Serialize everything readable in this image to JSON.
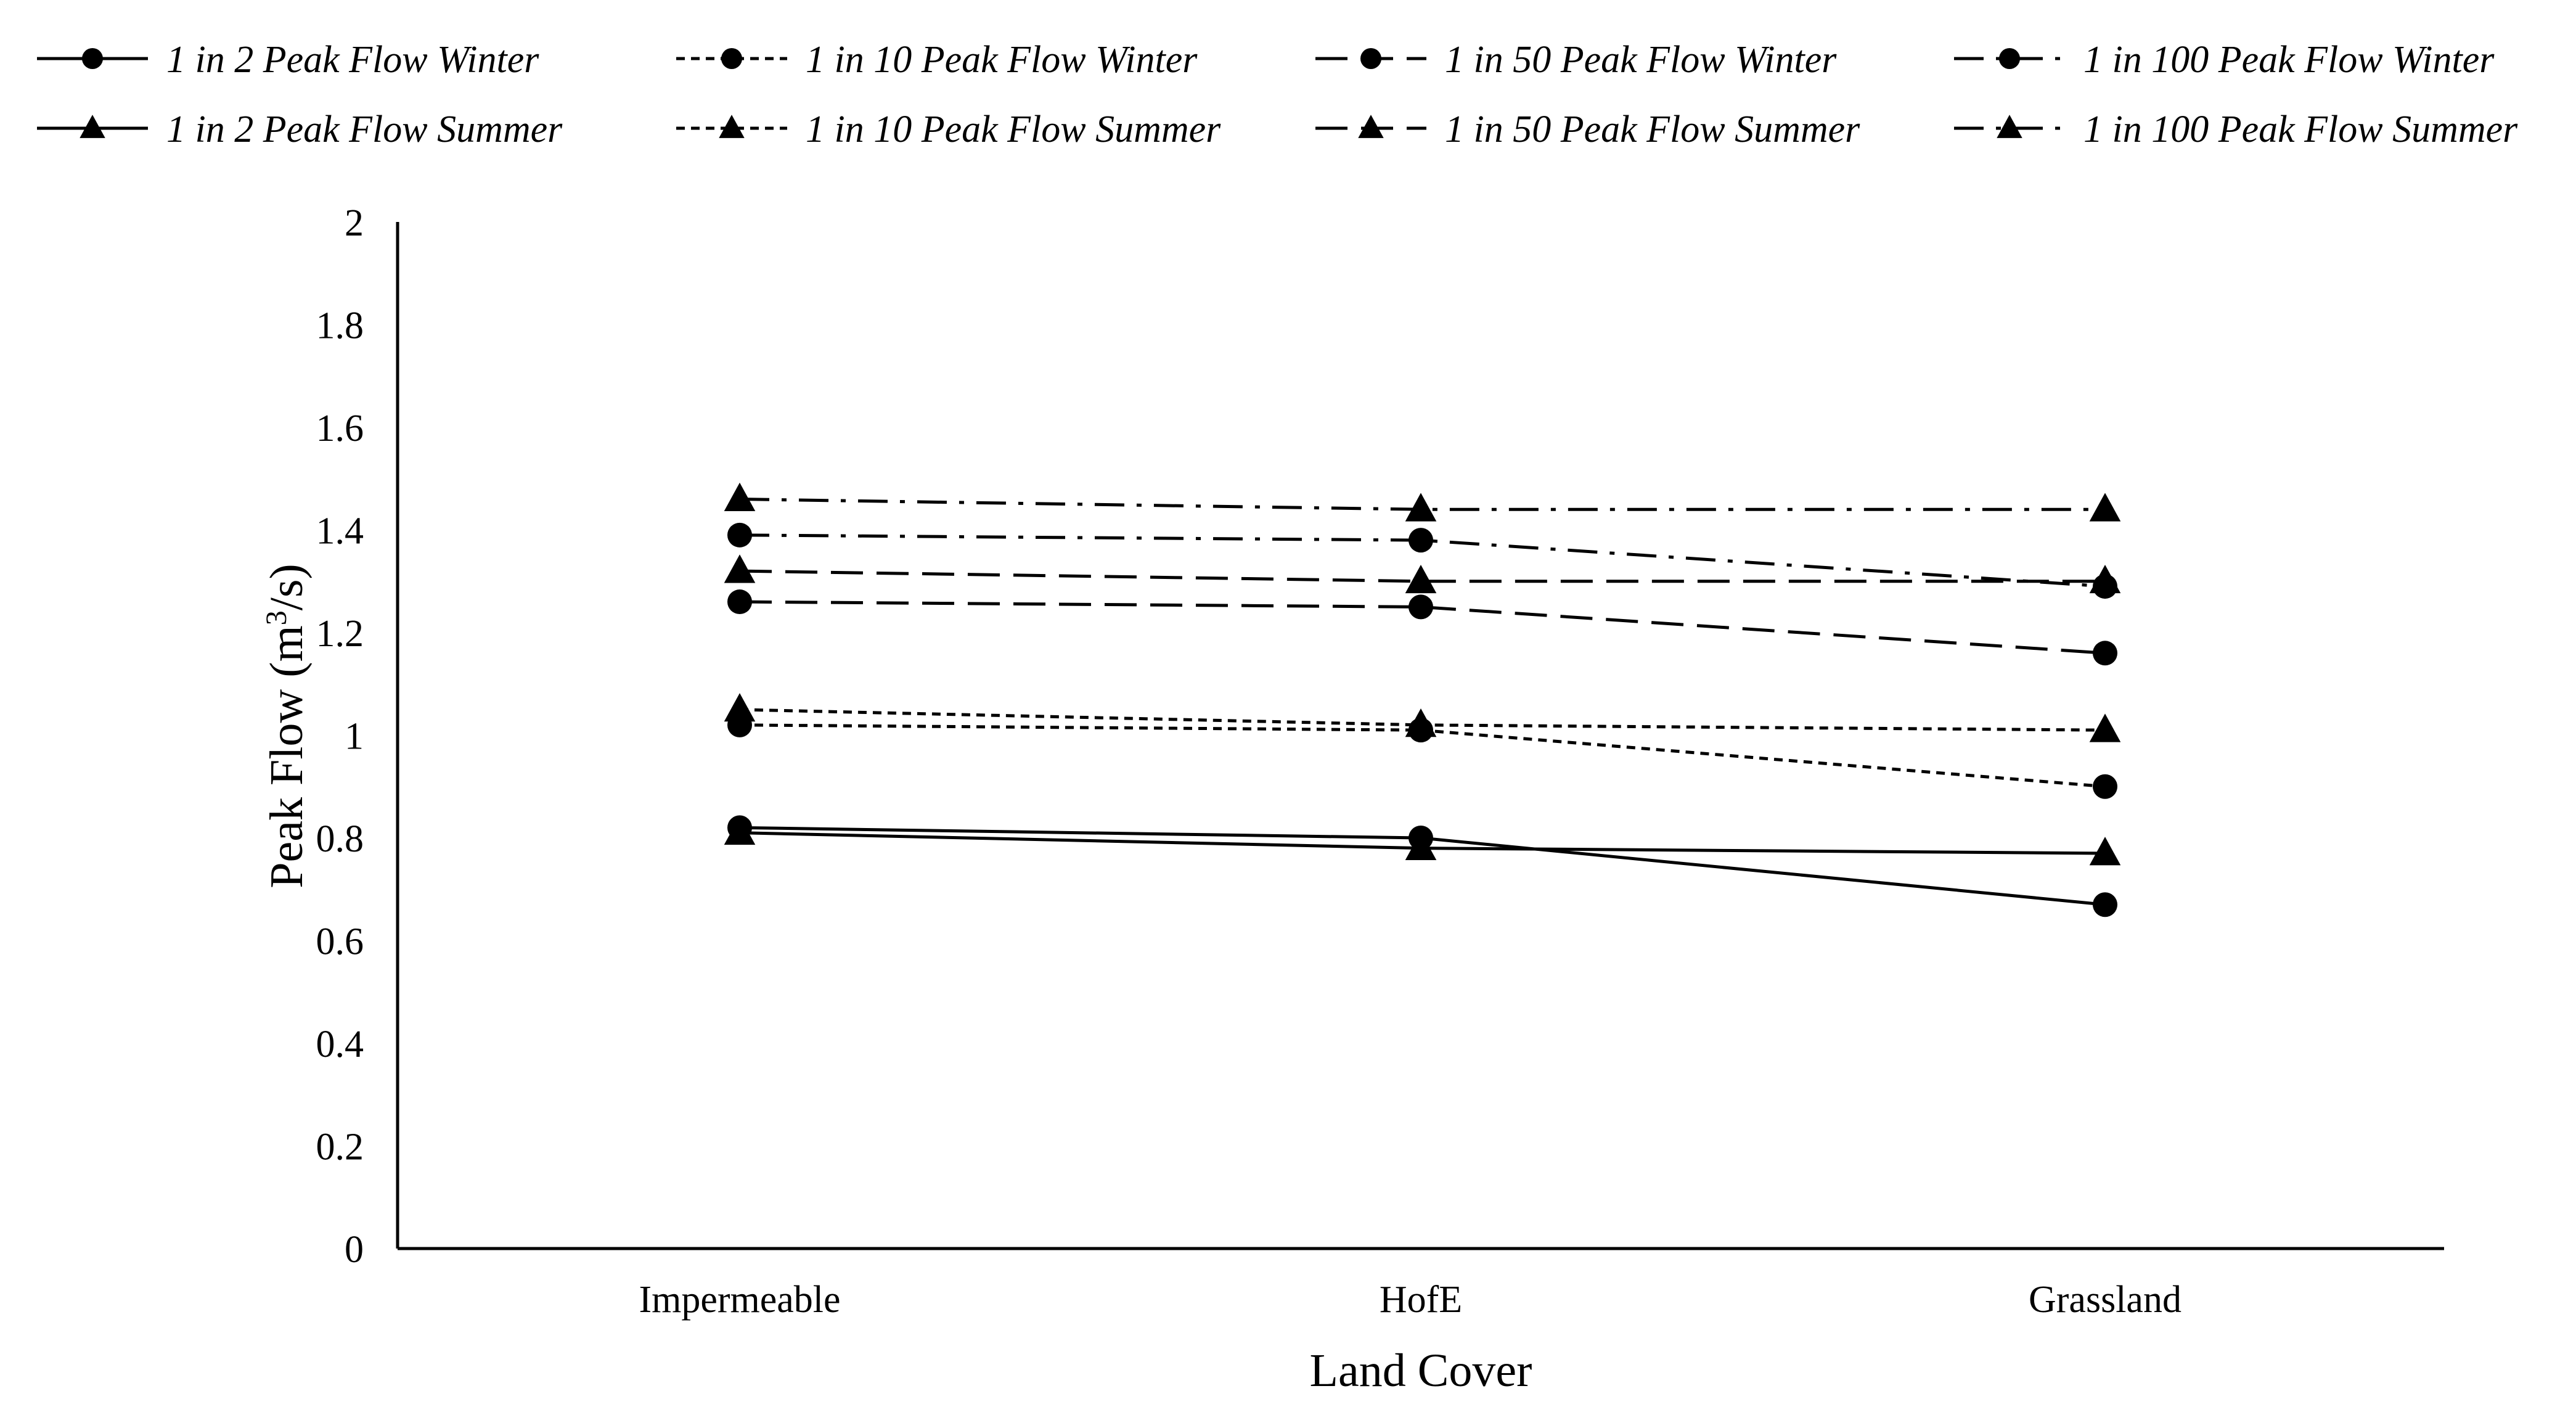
{
  "chart_data": {
    "type": "line",
    "xlabel": "Land Cover",
    "ylabel": {
      "text": "Peak Flow (m",
      "sup": "3",
      "tail": "/s)"
    },
    "categories": [
      "Impermeable",
      "HofE",
      "Grassland"
    ],
    "ylim": [
      0,
      2
    ],
    "yticks": [
      "0",
      "0.2",
      "0.4",
      "0.6",
      "0.8",
      "1",
      "1.2",
      "1.4",
      "1.6",
      "1.8",
      "2"
    ],
    "grid": false,
    "legend_position": "top",
    "colors": {
      "line": "#000000",
      "background": "#ffffff"
    },
    "series": [
      {
        "name": "1 in 2 Peak Flow Winter",
        "values": [
          0.82,
          0.8,
          0.67
        ],
        "marker": "circle",
        "dash": "solid"
      },
      {
        "name": "1 in 10 Peak Flow Winter",
        "values": [
          1.02,
          1.01,
          0.9
        ],
        "marker": "circle",
        "dash": "dotted"
      },
      {
        "name": "1 in 50 Peak Flow Winter",
        "values": [
          1.26,
          1.25,
          1.16
        ],
        "marker": "circle",
        "dash": "dashed"
      },
      {
        "name": "1 in 100 Peak Flow Winter",
        "values": [
          1.39,
          1.38,
          1.29
        ],
        "marker": "circle",
        "dash": "dashdot"
      },
      {
        "name": "1 in 2 Peak Flow Summer",
        "values": [
          0.81,
          0.78,
          0.77
        ],
        "marker": "triangle",
        "dash": "solid"
      },
      {
        "name": "1 in 10 Peak Flow Summer",
        "values": [
          1.05,
          1.02,
          1.01
        ],
        "marker": "triangle",
        "dash": "dotted"
      },
      {
        "name": "1 in 50 Peak Flow Summer",
        "values": [
          1.32,
          1.3,
          1.3
        ],
        "marker": "triangle",
        "dash": "dashed"
      },
      {
        "name": "1 in 100 Peak Flow Summer",
        "values": [
          1.46,
          1.44,
          1.44
        ],
        "marker": "triangle",
        "dash": "dashdot"
      }
    ]
  }
}
